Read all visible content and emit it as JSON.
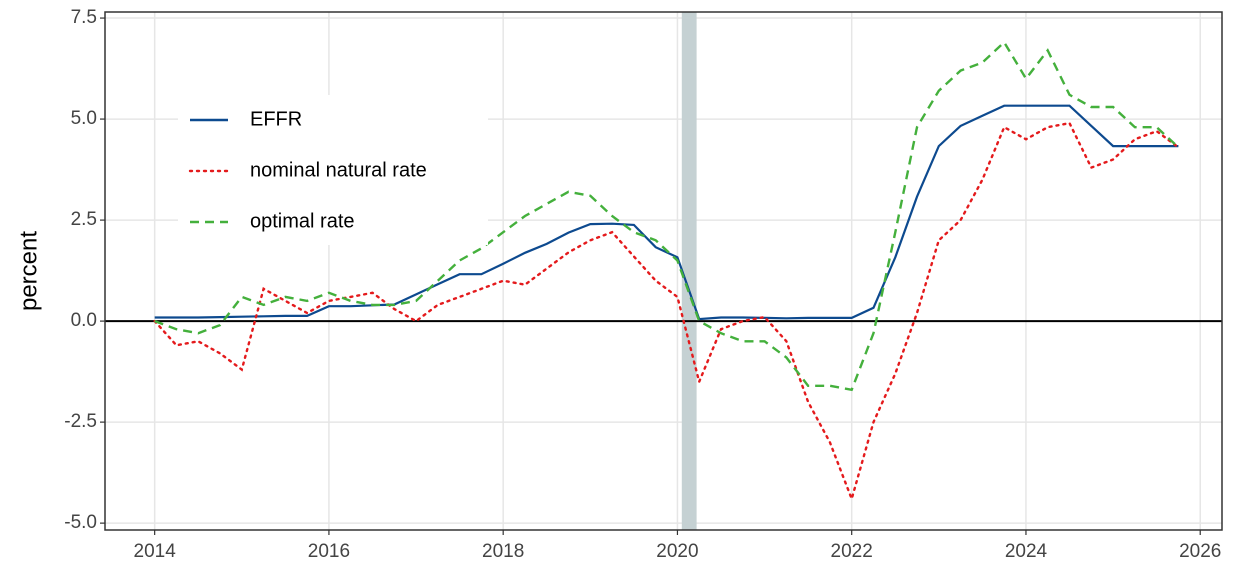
{
  "chart_data": {
    "type": "line",
    "y_label": "percent",
    "x": [
      2014,
      2014.25,
      2014.5,
      2014.75,
      2015,
      2015.25,
      2015.5,
      2015.75,
      2016,
      2016.25,
      2016.5,
      2016.75,
      2017,
      2017.25,
      2017.5,
      2017.75,
      2018,
      2018.25,
      2018.5,
      2018.75,
      2019,
      2019.25,
      2019.5,
      2019.75,
      2020,
      2020.25,
      2020.5,
      2020.75,
      2021,
      2021.25,
      2021.5,
      2021.75,
      2022,
      2022.25,
      2022.5,
      2022.75,
      2023,
      2023.25,
      2023.5,
      2023.75,
      2024,
      2024.25,
      2024.5,
      2024.75,
      2025,
      2025.25,
      2025.5,
      2025.75
    ],
    "series": [
      {
        "name": "EFFR",
        "color": "#0d4a8f",
        "style": "solid",
        "values": [
          0.09,
          0.09,
          0.09,
          0.1,
          0.11,
          0.12,
          0.13,
          0.13,
          0.37,
          0.37,
          0.39,
          0.41,
          0.66,
          0.91,
          1.16,
          1.16,
          1.42,
          1.69,
          1.91,
          2.19,
          2.4,
          2.41,
          2.38,
          1.83,
          1.58,
          0.05,
          0.09,
          0.09,
          0.08,
          0.07,
          0.08,
          0.08,
          0.08,
          0.33,
          1.58,
          3.08,
          4.33,
          4.83,
          5.08,
          5.33,
          5.33,
          5.33,
          5.33,
          4.83,
          4.33,
          4.33,
          4.33,
          4.33
        ]
      },
      {
        "name": "nominal natural rate",
        "color": "#e41a1c",
        "style": "dotted",
        "values": [
          0.0,
          -0.6,
          -0.5,
          -0.8,
          -1.2,
          0.8,
          0.5,
          0.2,
          0.5,
          0.6,
          0.7,
          0.3,
          0.0,
          0.4,
          0.6,
          0.8,
          1.0,
          0.9,
          1.3,
          1.7,
          2.0,
          2.2,
          1.6,
          1.0,
          0.6,
          -1.5,
          -0.2,
          0.0,
          0.1,
          -0.5,
          -2.0,
          -3.0,
          -4.4,
          -2.5,
          -1.3,
          0.2,
          2.0,
          2.5,
          3.5,
          4.8,
          4.5,
          4.8,
          4.9,
          3.8,
          4.0,
          4.5,
          4.7,
          4.3
        ]
      },
      {
        "name": "optimal rate",
        "color": "#44b03c",
        "style": "dashed",
        "values": [
          0.0,
          -0.2,
          -0.3,
          -0.1,
          0.6,
          0.4,
          0.6,
          0.5,
          0.7,
          0.5,
          0.4,
          0.4,
          0.5,
          1.0,
          1.5,
          1.8,
          2.2,
          2.6,
          2.9,
          3.2,
          3.1,
          2.6,
          2.2,
          2.0,
          1.5,
          0.0,
          -0.3,
          -0.5,
          -0.5,
          -0.9,
          -1.6,
          -1.6,
          -1.7,
          -0.3,
          2.2,
          4.8,
          5.7,
          6.2,
          6.4,
          6.9,
          6.0,
          6.7,
          5.6,
          5.3,
          5.3,
          4.8,
          4.8,
          4.3
        ]
      }
    ],
    "shaded_region": [
      2020.05,
      2020.22
    ],
    "shaded_color": "#c5d1d3",
    "hline": 0,
    "xlim": [
      2013.43,
      2026.25
    ],
    "ylim": [
      -5.17,
      7.65
    ],
    "xticks": [
      2014,
      2016,
      2018,
      2020,
      2022,
      2024,
      2026
    ],
    "yticks": [
      {
        "value": -5,
        "label": "-5.0"
      },
      {
        "value": -2.5,
        "label": "-2.5"
      },
      {
        "value": 0,
        "label": "0.0"
      },
      {
        "value": 2.5,
        "label": "2.5"
      },
      {
        "value": 5,
        "label": "5.0"
      },
      {
        "value": 7.5,
        "label": "7.5"
      }
    ],
    "grid": true,
    "legend_position": "top-left"
  }
}
